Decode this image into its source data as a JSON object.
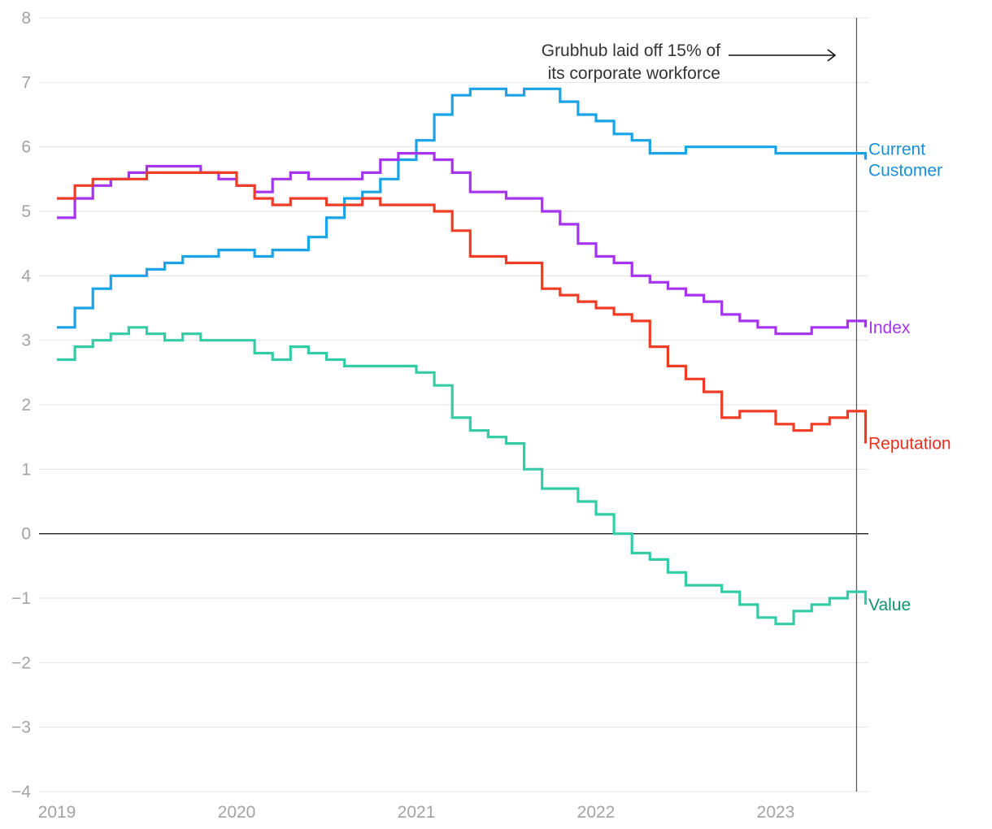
{
  "chart_data": {
    "type": "line",
    "title": "",
    "xlabel": "",
    "ylabel": "",
    "xlim": [
      2019,
      2023.52
    ],
    "ylim": [
      -4,
      8
    ],
    "x_ticks": [
      2019,
      2020,
      2021,
      2022,
      2023
    ],
    "x_tick_labels": [
      "2019",
      "2020",
      "2021",
      "2022",
      "2023"
    ],
    "y_ticks": [
      8,
      7,
      6,
      5,
      4,
      3,
      2,
      1,
      0,
      -1,
      -2,
      -3,
      -4
    ],
    "y_tick_labels": [
      "8",
      "7",
      "6",
      "5",
      "4",
      "3",
      "2",
      "1",
      "0",
      "−1",
      "−2",
      "−3",
      "−4"
    ],
    "grid": true,
    "event": {
      "x": 2023.45,
      "annotation_lines": [
        "Grubhub laid off 15% of",
        "its corporate workforce"
      ]
    },
    "series": [
      {
        "name": "Current Customer",
        "label_lines": [
          "Current",
          "Customer"
        ],
        "color": "#1aa3e6",
        "label_color": "#1a8fd6",
        "x": [
          2019.0,
          2019.1,
          2019.2,
          2019.3,
          2019.4,
          2019.5,
          2019.6,
          2019.7,
          2019.8,
          2019.9,
          2020.0,
          2020.1,
          2020.2,
          2020.3,
          2020.4,
          2020.5,
          2020.6,
          2020.7,
          2020.8,
          2020.9,
          2021.0,
          2021.1,
          2021.2,
          2021.3,
          2021.4,
          2021.5,
          2021.6,
          2021.7,
          2021.8,
          2021.9,
          2022.0,
          2022.1,
          2022.2,
          2022.3,
          2022.4,
          2022.5,
          2022.6,
          2022.7,
          2022.8,
          2022.9,
          2023.0,
          2023.1,
          2023.2,
          2023.3,
          2023.4,
          2023.5
        ],
        "y": [
          3.2,
          3.5,
          3.8,
          4.0,
          4.0,
          4.1,
          4.2,
          4.3,
          4.3,
          4.4,
          4.4,
          4.3,
          4.4,
          4.4,
          4.6,
          4.9,
          5.2,
          5.3,
          5.5,
          5.8,
          6.1,
          6.5,
          6.8,
          6.9,
          6.9,
          6.8,
          6.9,
          6.9,
          6.7,
          6.5,
          6.4,
          6.2,
          6.1,
          5.9,
          5.9,
          6.0,
          6.0,
          6.0,
          6.0,
          6.0,
          5.9,
          5.9,
          5.9,
          5.9,
          5.9,
          5.8
        ]
      },
      {
        "name": "Index",
        "label_lines": [
          "Index"
        ],
        "color": "#a533f0",
        "label_color": "#a533f0",
        "x": [
          2019.0,
          2019.1,
          2019.2,
          2019.3,
          2019.4,
          2019.5,
          2019.6,
          2019.7,
          2019.8,
          2019.9,
          2020.0,
          2020.1,
          2020.2,
          2020.3,
          2020.4,
          2020.5,
          2020.6,
          2020.7,
          2020.8,
          2020.9,
          2021.0,
          2021.1,
          2021.2,
          2021.3,
          2021.4,
          2021.5,
          2021.6,
          2021.7,
          2021.8,
          2021.9,
          2022.0,
          2022.1,
          2022.2,
          2022.3,
          2022.4,
          2022.5,
          2022.6,
          2022.7,
          2022.8,
          2022.9,
          2023.0,
          2023.1,
          2023.2,
          2023.3,
          2023.4,
          2023.5
        ],
        "y": [
          4.9,
          5.2,
          5.4,
          5.5,
          5.6,
          5.7,
          5.7,
          5.7,
          5.6,
          5.5,
          5.4,
          5.3,
          5.5,
          5.6,
          5.5,
          5.5,
          5.5,
          5.6,
          5.8,
          5.9,
          5.9,
          5.8,
          5.6,
          5.3,
          5.3,
          5.2,
          5.2,
          5.0,
          4.8,
          4.5,
          4.3,
          4.2,
          4.0,
          3.9,
          3.8,
          3.7,
          3.6,
          3.4,
          3.3,
          3.2,
          3.1,
          3.1,
          3.2,
          3.2,
          3.3,
          3.2
        ]
      },
      {
        "name": "Reputation",
        "label_lines": [
          "Reputation"
        ],
        "color": "#f03c25",
        "label_color": "#e83020",
        "x": [
          2019.0,
          2019.1,
          2019.2,
          2019.3,
          2019.4,
          2019.5,
          2019.6,
          2019.7,
          2019.8,
          2019.9,
          2020.0,
          2020.1,
          2020.2,
          2020.3,
          2020.4,
          2020.5,
          2020.6,
          2020.7,
          2020.8,
          2020.9,
          2021.0,
          2021.1,
          2021.2,
          2021.3,
          2021.4,
          2021.5,
          2021.6,
          2021.7,
          2021.8,
          2021.9,
          2022.0,
          2022.1,
          2022.2,
          2022.3,
          2022.4,
          2022.5,
          2022.6,
          2022.7,
          2022.8,
          2022.9,
          2023.0,
          2023.1,
          2023.2,
          2023.3,
          2023.4,
          2023.5
        ],
        "y": [
          5.2,
          5.4,
          5.5,
          5.5,
          5.5,
          5.6,
          5.6,
          5.6,
          5.6,
          5.6,
          5.4,
          5.2,
          5.1,
          5.2,
          5.2,
          5.1,
          5.1,
          5.2,
          5.1,
          5.1,
          5.1,
          5.0,
          4.7,
          4.3,
          4.3,
          4.2,
          4.2,
          3.8,
          3.7,
          3.6,
          3.5,
          3.4,
          3.3,
          2.9,
          2.6,
          2.4,
          2.2,
          1.8,
          1.9,
          1.9,
          1.7,
          1.6,
          1.7,
          1.8,
          1.9,
          1.4
        ]
      },
      {
        "name": "Value",
        "label_lines": [
          "Value"
        ],
        "color": "#33cca6",
        "label_color": "#13946a",
        "x": [
          2019.0,
          2019.1,
          2019.2,
          2019.3,
          2019.4,
          2019.5,
          2019.6,
          2019.7,
          2019.8,
          2019.9,
          2020.0,
          2020.1,
          2020.2,
          2020.3,
          2020.4,
          2020.5,
          2020.6,
          2020.7,
          2020.8,
          2020.9,
          2021.0,
          2021.1,
          2021.2,
          2021.3,
          2021.4,
          2021.5,
          2021.6,
          2021.7,
          2021.8,
          2021.9,
          2022.0,
          2022.1,
          2022.2,
          2022.3,
          2022.4,
          2022.5,
          2022.6,
          2022.7,
          2022.8,
          2022.9,
          2023.0,
          2023.1,
          2023.2,
          2023.3,
          2023.4,
          2023.5
        ],
        "y": [
          2.7,
          2.9,
          3.0,
          3.1,
          3.2,
          3.1,
          3.0,
          3.1,
          3.0,
          3.0,
          3.0,
          2.8,
          2.7,
          2.9,
          2.8,
          2.7,
          2.6,
          2.6,
          2.6,
          2.6,
          2.5,
          2.3,
          1.8,
          1.6,
          1.5,
          1.4,
          1.0,
          0.7,
          0.7,
          0.5,
          0.3,
          0.0,
          -0.3,
          -0.4,
          -0.6,
          -0.8,
          -0.8,
          -0.9,
          -1.1,
          -1.3,
          -1.4,
          -1.2,
          -1.1,
          -1.0,
          -0.9,
          -1.1
        ]
      }
    ]
  }
}
